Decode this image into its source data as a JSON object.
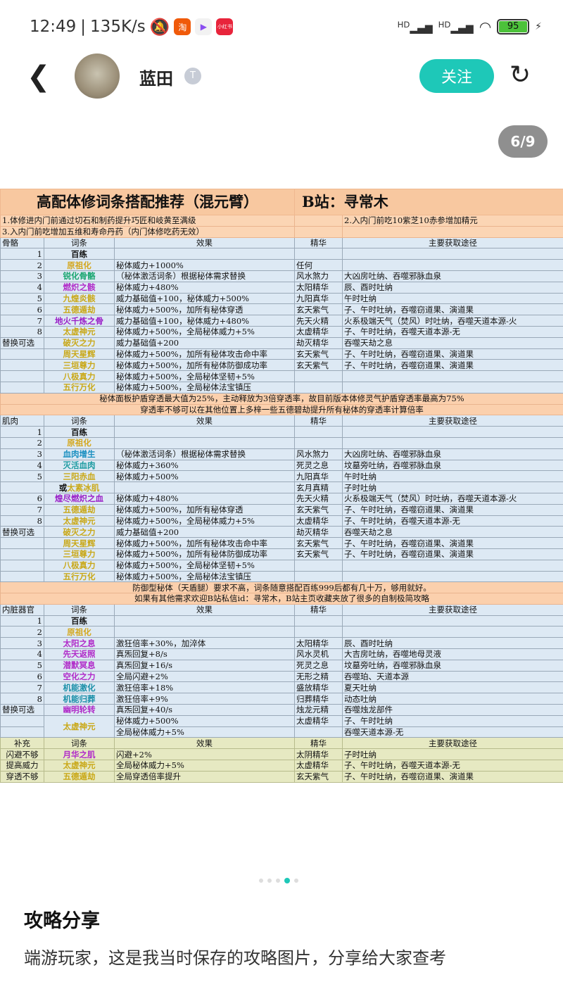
{
  "status": {
    "time": "12:49",
    "speed": "135K/s",
    "apps": [
      {
        "label": "淘",
        "color": "#f05a0a"
      },
      {
        "label": "▶",
        "color": "#f2f2f2"
      },
      {
        "label": "小红书",
        "color": "#e8243b"
      }
    ],
    "signal": "HD",
    "battery": "95"
  },
  "header": {
    "user": "蓝田",
    "badge": "T",
    "follow": "关注",
    "pager": "6/9"
  },
  "table": {
    "title": "高配体修词条搭配推荐（混元臂）",
    "title_right": "B站：寻常木",
    "rows": [
      {
        "t": "note",
        "a": "1.体修进内门前通过切石和制药提升巧匠和岐黄至满级",
        "b": "2.入内门前吃10紫芝10赤参增加精元"
      },
      {
        "t": "note",
        "a": "3.入内门前吃增加五维和寿命丹药（内门体修吃药无效）",
        "b": ""
      },
      {
        "t": "head",
        "c": [
          "骨骼",
          "词条",
          "效果",
          "精华",
          "主要获取途径"
        ]
      },
      {
        "t": "row",
        "c": [
          "1",
          "百练",
          "",
          "",
          ""
        ],
        "col": "#111"
      },
      {
        "t": "row",
        "c": [
          "2",
          "原祖化",
          "秘体威力+1000%",
          "任何",
          ""
        ],
        "col": "#d4a820"
      },
      {
        "t": "row",
        "c": [
          "3",
          "锐化骨骼",
          "（秘体激活词条）根据秘体需求替换",
          "风水煞力",
          "大凶房吐纳、吞噬邪脉血泉"
        ],
        "col": "#17a56e"
      },
      {
        "t": "row",
        "c": [
          "4",
          "燃炽之骸",
          "秘体威力+480%",
          "太阳精华",
          "辰、酉时吐纳"
        ],
        "col": "#b02ac8"
      },
      {
        "t": "row",
        "c": [
          "5",
          "九煌炎骸",
          "威力基础值+100，秘体威力+500%",
          "九阳真华",
          "午时吐纳"
        ],
        "col": "#c9a818"
      },
      {
        "t": "row",
        "c": [
          "6",
          "五德遁劫",
          "秘体威力+500%，加所有秘体穿透",
          "玄天紫气",
          "子、午时吐纳，吞噬窃道果、演道果"
        ],
        "col": "#c9a818"
      },
      {
        "t": "row",
        "c": [
          "7",
          "地火千炼之骨",
          "威力基础值+100，秘体威力+480%",
          "先天火精",
          "火系极端天气（焚风）时吐纳，吞噬天道本源-火"
        ],
        "col": "#9a20c8"
      },
      {
        "t": "row",
        "c": [
          "8",
          "太虚神元",
          "秘体威力+500%，全局秘体威力+5%",
          "太虚精华",
          "子、午时吐纳，吞噬天道本源-无"
        ],
        "col": "#c9a818"
      },
      {
        "t": "row",
        "c": [
          "替换可选",
          "破灭之力",
          "威力基础值+200",
          "劫灭精华",
          "吞噬天劫之息"
        ],
        "col": "#c9a818"
      },
      {
        "t": "row",
        "c": [
          "",
          "周天星辉",
          "秘体威力+500%，加所有秘体攻击命中率",
          "玄天紫气",
          "子、午时吐纳，吞噬窃道果、演道果"
        ],
        "col": "#c9a818"
      },
      {
        "t": "row",
        "c": [
          "",
          "三垣尊力",
          "秘体威力+500%，加所有秘体防御成功率",
          "玄天紫气",
          "子、午时吐纳，吞噬窃道果、演道果"
        ],
        "col": "#c9a818"
      },
      {
        "t": "row",
        "c": [
          "",
          "八极真力",
          "秘体威力+500%，全局秘体坚韧+5%",
          "",
          ""
        ],
        "col": "#c9a818"
      },
      {
        "t": "row",
        "c": [
          "",
          "五行万化",
          "秘体威力+500%，全局秘体法宝镇压",
          "",
          ""
        ],
        "col": "#c9a818"
      },
      {
        "t": "cnote",
        "a": "秘体面板护盾穿透最大值为25%，主动释放为3倍穿透率，故目前版本体修灵气护盾穿透率最高为75%"
      },
      {
        "t": "cnote",
        "a": "穿透率不够可以在其他位置上多梓一些五德碧劫提升所有秘体的穿透率计算倍率"
      },
      {
        "t": "head",
        "c": [
          "肌肉",
          "词条",
          "效果",
          "精华",
          "主要获取途径"
        ]
      },
      {
        "t": "row",
        "c": [
          "1",
          "百练",
          "",
          "",
          ""
        ],
        "col": "#111"
      },
      {
        "t": "row",
        "c": [
          "2",
          "原祖化",
          "",
          "",
          ""
        ],
        "col": "#d4a820"
      },
      {
        "t": "row",
        "c": [
          "3",
          "血肉增生",
          "（秘体激活词条）根据秘体需求替换",
          "风水煞力",
          "大凶房吐纳、吞噬邪脉血泉"
        ],
        "col": "#1a8fc0"
      },
      {
        "t": "row",
        "c": [
          "4",
          "灭活血肉",
          "秘体威力+360%",
          "死灵之息",
          "坟墓旁吐纳，吞噬邪脉血泉"
        ],
        "col": "#1a9aa0"
      },
      {
        "t": "row",
        "c": [
          "5",
          "三阳赤血",
          "秘体威力+500%",
          "九阳真华",
          "午时吐纳"
        ],
        "col": "#c9a818"
      },
      {
        "t": "row",
        "c": [
          "",
          "或太素冰肌",
          "",
          "玄月真精",
          "子时吐纳"
        ],
        "col": "#c9a818"
      },
      {
        "t": "row",
        "c": [
          "6",
          "煌尽燃炽之血",
          "秘体威力+480%",
          "先天火精",
          "火系极端天气（焚风）时吐纳，吞噬天道本源-火"
        ],
        "col": "#9a20c8"
      },
      {
        "t": "row",
        "c": [
          "7",
          "五德遁劫",
          "秘体威力+500%，加所有秘体穿透",
          "玄天紫气",
          "子、午时吐纳，吞噬窃道果、演道果"
        ],
        "col": "#c9a818"
      },
      {
        "t": "row",
        "c": [
          "8",
          "太虚神元",
          "秘体威力+500%，全局秘体威力+5%",
          "太虚精华",
          "子、午时吐纳，吞噬天道本源-无"
        ],
        "col": "#c9a818"
      },
      {
        "t": "row",
        "c": [
          "替换可选",
          "破灭之力",
          "威力基础值+200",
          "劫灭精华",
          "吞噬天劫之息"
        ],
        "col": "#c9a818"
      },
      {
        "t": "row",
        "c": [
          "",
          "周天星辉",
          "秘体威力+500%，加所有秘体攻击命中率",
          "玄天紫气",
          "子、午时吐纳，吞噬窃道果、演道果"
        ],
        "col": "#c9a818"
      },
      {
        "t": "row",
        "c": [
          "",
          "三垣尊力",
          "秘体威力+500%，加所有秘体防御成功率",
          "玄天紫气",
          "子、午时吐纳，吞噬窃道果、演道果"
        ],
        "col": "#c9a818"
      },
      {
        "t": "row",
        "c": [
          "",
          "八极真力",
          "秘体威力+500%，全局秘体坚韧+5%",
          "",
          ""
        ],
        "col": "#c9a818"
      },
      {
        "t": "row",
        "c": [
          "",
          "五行万化",
          "秘体威力+500%，全局秘体法宝镇压",
          "",
          ""
        ],
        "col": "#c9a818"
      },
      {
        "t": "cnote",
        "a": "防御型秘体（天盾腿）要求不高，词条随意搭配百练999后都有几十万，够用就好。"
      },
      {
        "t": "cnote",
        "a": "如果有其他需求欢迎B站私信id：寻常木，B站主页收藏夹放了很多的自制极简攻略"
      },
      {
        "t": "head",
        "c": [
          "内脏器官",
          "词条",
          "效果",
          "精华",
          "主要获取途径"
        ]
      },
      {
        "t": "row",
        "c": [
          "1",
          "百练",
          "",
          "",
          ""
        ],
        "col": "#111"
      },
      {
        "t": "row",
        "c": [
          "2",
          "原祖化",
          "",
          "",
          ""
        ],
        "col": "#d4a820"
      },
      {
        "t": "row",
        "c": [
          "3",
          "太阳之息",
          "激狂倍率+30%，加淬体",
          "太阳精华",
          "辰、酉时吐纳"
        ],
        "col": "#b02ac8"
      },
      {
        "t": "row",
        "c": [
          "4",
          "先天返照",
          "真炁回复+8/s",
          "风水灵机",
          "大吉房吐纳，吞噬地母灵液"
        ],
        "col": "#b02ac8"
      },
      {
        "t": "row",
        "c": [
          "5",
          "潜默冥息",
          "真炁回复+16/s",
          "死灵之息",
          "坟墓旁吐纳，吞噬邪脉血泉"
        ],
        "col": "#b02ac8"
      },
      {
        "t": "row",
        "c": [
          "6",
          "空化之力",
          "全局闪避+2%",
          "无形之精",
          "吞噬珀、天道本源"
        ],
        "col": "#b02ac8"
      },
      {
        "t": "row",
        "c": [
          "7",
          "机能激化",
          "激狂倍率+18%",
          "盛放精华",
          "夏天吐纳"
        ],
        "col": "#1a8fa8"
      },
      {
        "t": "row",
        "c": [
          "8",
          "机能归葬",
          "激狂倍率+9%",
          "归葬精华",
          "动态吐纳"
        ],
        "col": "#1a8fa8"
      },
      {
        "t": "row",
        "c": [
          "替换可选",
          "幽明轮转",
          "真炁回复+40/s",
          "烛龙元精",
          "吞噬烛龙部件"
        ],
        "col": "#b02ac8"
      },
      {
        "t": "row",
        "c": [
          "",
          "太虚神元",
          "秘体威力+500%",
          "太虚精华",
          "子、午时吐纳"
        ],
        "col": "#c9a818",
        "span": 2
      },
      {
        "t": "row",
        "c": [
          "",
          "",
          "全局秘体威力+5%",
          "",
          "吞噬天道本源-无"
        ],
        "skip": true
      },
      {
        "t": "suphead",
        "c": [
          "补充",
          "词条",
          "效果",
          "精华",
          "主要获取途径"
        ]
      },
      {
        "t": "sup",
        "c": [
          "闪避不够",
          "月华之肌",
          "闪避+2%",
          "太阴精华",
          "子时吐纳"
        ],
        "col": "#b02ac8"
      },
      {
        "t": "sup",
        "c": [
          "提高威力",
          "太虚神元",
          "全局秘体威力+5%",
          "太虚精华",
          "子、午时吐纳，吞噬天道本源-无"
        ],
        "col": "#c9a818"
      },
      {
        "t": "sup",
        "c": [
          "穿透不够",
          "五德遁劫",
          "全局穿透倍率提升",
          "玄天紫气",
          "子、午时吐纳，吞噬窃道果、演道果"
        ],
        "col": "#c9a818"
      }
    ]
  },
  "post": {
    "heading": "攻略分享",
    "body": "端游玩家，这是我当时保存的攻略图片，分享给大家查考"
  },
  "colors": {
    "accent": "#1ec8b8"
  }
}
